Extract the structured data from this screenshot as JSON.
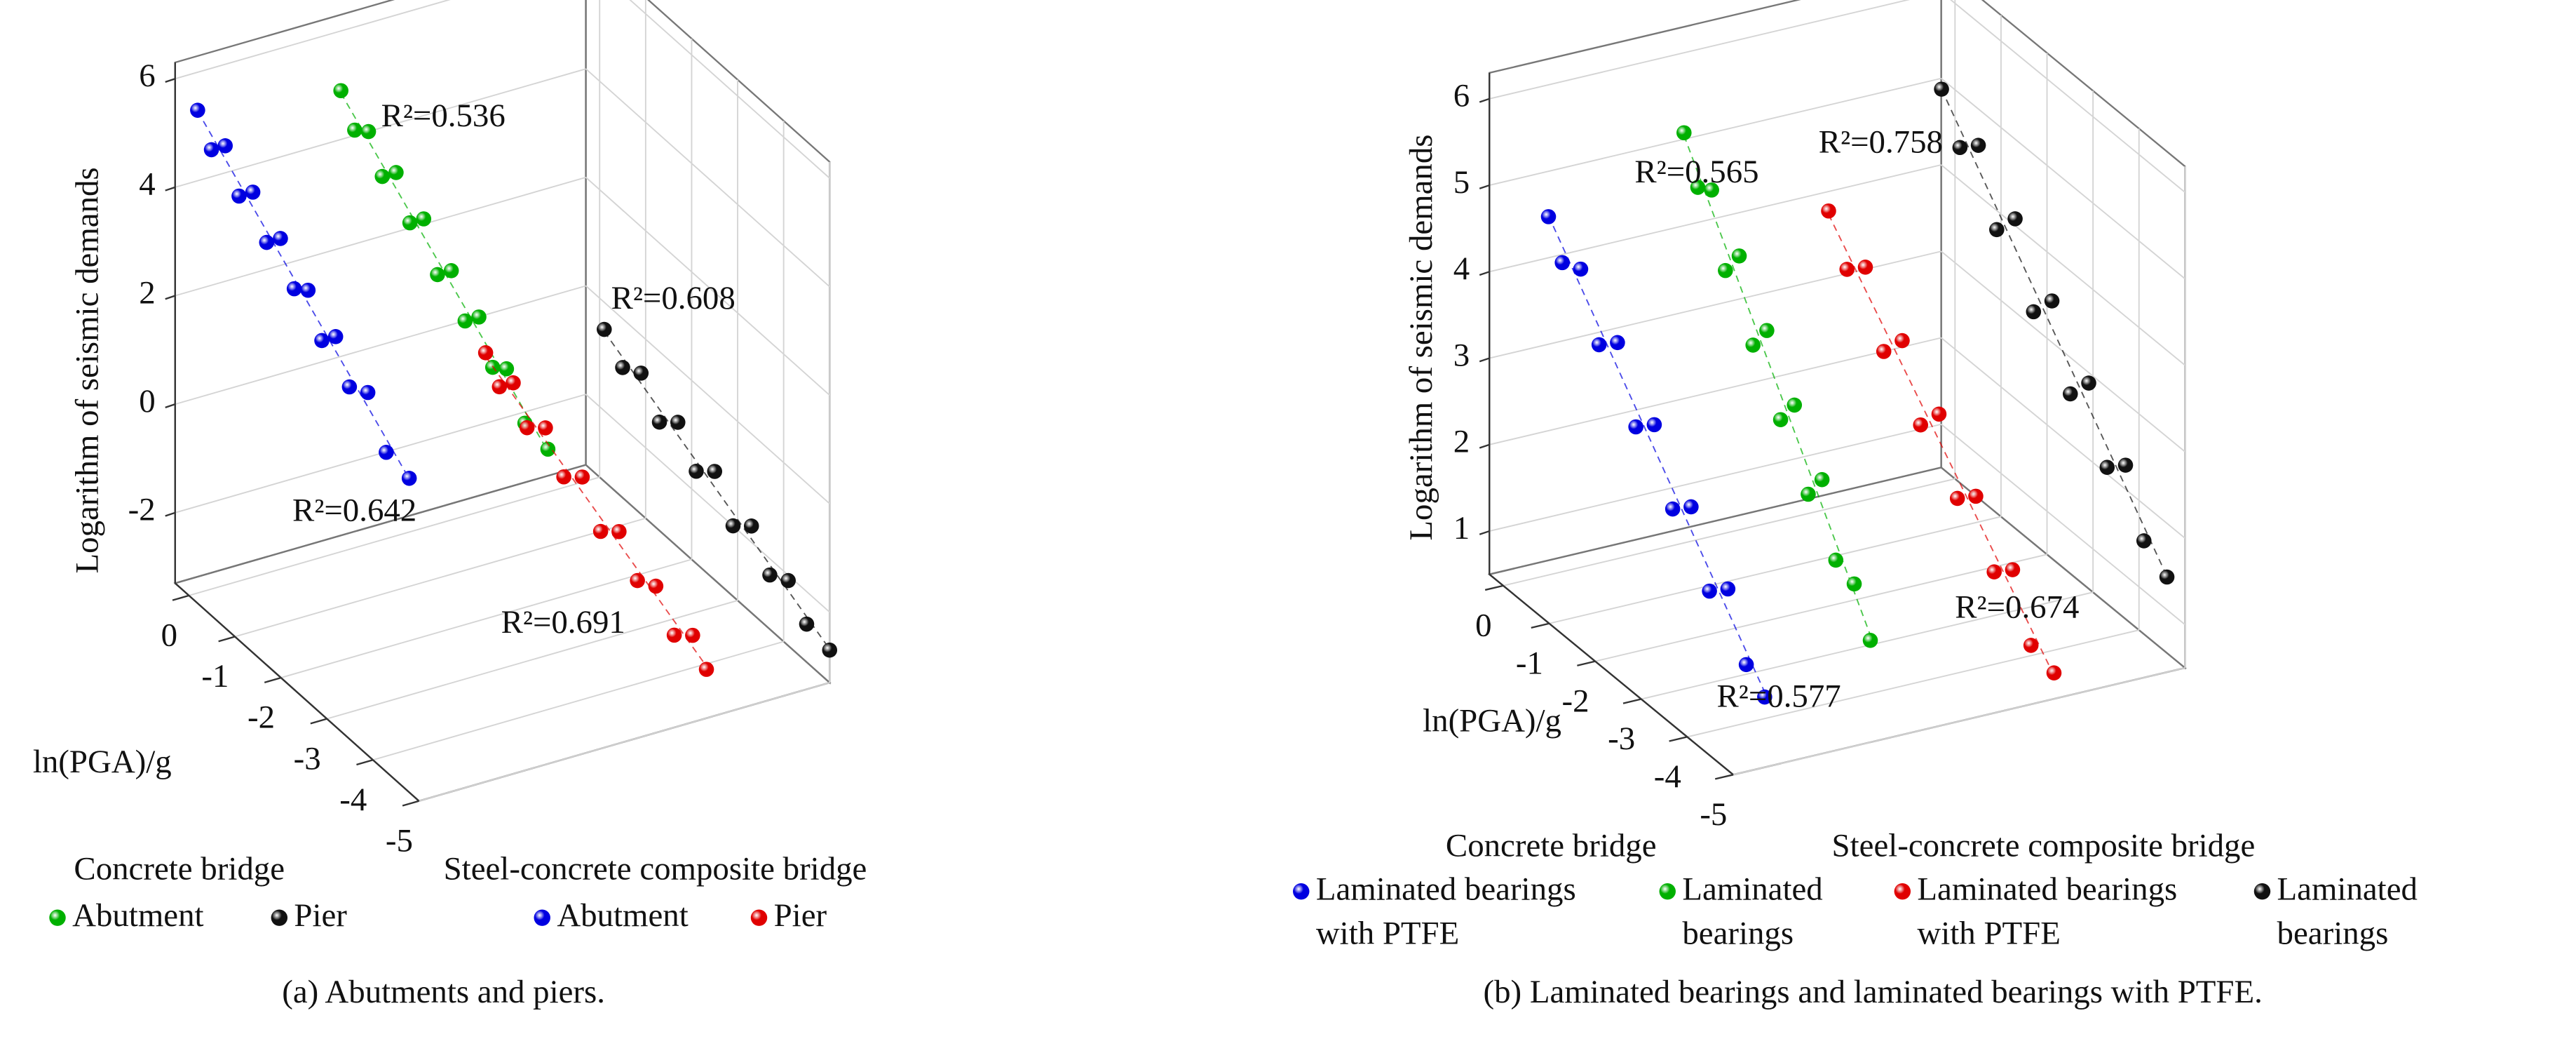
{
  "chart_data": [
    {
      "type": "scatter3d",
      "caption": "(a) Abutments and piers.",
      "zlabel": "Logarithm of seismic demands",
      "xlabel": "ln(PGA)/g",
      "xlim": [
        0.3,
        -5
      ],
      "xticks": [
        0,
        -1,
        -2,
        -3,
        -4,
        -5
      ],
      "zlim": [
        -3.3,
        6.3
      ],
      "zticks": [
        -2,
        0,
        2,
        4,
        6
      ],
      "groups": [
        {
          "title": "Concrete bridge",
          "series": [
            {
              "name": "Abutment",
              "color": "#00b000",
              "annotation": "R²=0.536",
              "x": [
                0,
                -0.3,
                -0.6,
                -0.9,
                -1.2,
                -1.5,
                -1.8,
                -2.1,
                -2.4,
                -2.7,
                -3.0,
                -3.3,
                -3.6,
                -4.0,
                -4.5
              ],
              "values": [
                5.2,
                4.7,
                4.9,
                4.3,
                4.6,
                3.9,
                4.2,
                3.4,
                3.7,
                3.0,
                3.3,
                2.6,
                2.8,
                2.1,
                2.0
              ]
            },
            {
              "name": "Pier",
              "color": "#111111",
              "annotation": "R²=0.608",
              "x": [
                -0.1,
                -0.5,
                -0.9,
                -1.3,
                -1.7,
                -2.1,
                -2.5,
                -2.9,
                -3.3,
                -3.7,
                -4.1,
                -4.5,
                -5.0
              ],
              "values": [
                -0.5,
                -0.9,
                -0.7,
                -1.3,
                -1.0,
                -1.6,
                -1.3,
                -2.0,
                -1.7,
                -2.3,
                -2.1,
                -2.6,
                -2.7
              ]
            }
          ]
        },
        {
          "title": "Steel-concrete composite bridge",
          "series": [
            {
              "name": "Abutment",
              "color": "#0000e0",
              "annotation": "R²=0.642",
              "x": [
                -0.1,
                -0.4,
                -0.7,
                -1.0,
                -1.3,
                -1.6,
                -1.9,
                -2.2,
                -2.5,
                -2.8,
                -3.1,
                -3.4,
                -3.8,
                -4.2,
                -4.7
              ],
              "values": [
                5.7,
                5.2,
                5.5,
                4.8,
                5.1,
                4.4,
                4.7,
                4.0,
                4.2,
                3.5,
                3.8,
                3.1,
                3.3,
                2.5,
                2.4
              ]
            },
            {
              "name": "Pier",
              "color": "#e00000",
              "annotation": "R²=0.691",
              "x": [
                -0.2,
                -0.5,
                -0.8,
                -1.1,
                -1.5,
                -1.9,
                -2.3,
                -2.7,
                -3.1,
                -3.5,
                -3.9,
                -4.3,
                -4.7,
                -5.0
              ],
              "values": [
                -0.2,
                -0.6,
                -0.3,
                -0.9,
                -0.6,
                -1.2,
                -0.9,
                -1.6,
                -1.3,
                -1.9,
                -1.7,
                -2.3,
                -2.0,
                -2.4
              ]
            }
          ]
        }
      ]
    },
    {
      "type": "scatter3d",
      "caption": "(b) Laminated bearings and laminated bearings with PTFE.",
      "zlabel": "Logarithm of seismic demands",
      "xlabel": "ln(PGA)/g",
      "xlim": [
        0.3,
        -5
      ],
      "xticks": [
        0,
        -1,
        -2,
        -3,
        -4,
        -5
      ],
      "zlim": [
        0.5,
        6.3
      ],
      "zticks": [
        1,
        2,
        3,
        4,
        5,
        6
      ],
      "groups": [
        {
          "title": "Concrete bridge",
          "series": [
            {
              "name": "Laminated bearings with PTFE",
              "color": "#0000e0",
              "annotation": "R²=0.577",
              "x": [
                -0.1,
                -0.4,
                -0.8,
                -1.2,
                -1.6,
                -2.0,
                -2.4,
                -2.8,
                -3.2,
                -3.6,
                -4.0,
                -4.4,
                -4.8
              ],
              "values": [
                4.7,
                4.3,
                4.4,
                3.7,
                3.9,
                3.1,
                3.3,
                2.5,
                2.7,
                1.9,
                2.1,
                1.4,
                1.2
              ]
            },
            {
              "name": "Laminated bearings",
              "color": "#00b000",
              "annotation": "R²=0.565",
              "x": [
                -0.1,
                -0.4,
                -0.7,
                -1.0,
                -1.3,
                -1.6,
                -1.9,
                -2.2,
                -2.5,
                -2.8,
                -3.1,
                -3.4,
                -3.8,
                -4.15
              ],
              "values": [
                5.3,
                4.8,
                4.9,
                4.1,
                4.4,
                3.5,
                3.8,
                2.9,
                3.2,
                2.3,
                2.6,
                1.8,
                1.7,
                1.2
              ]
            }
          ]
        },
        {
          "title": "Steel-concrete composite bridge",
          "series": [
            {
              "name": "Laminated bearings with PTFE",
              "color": "#e00000",
              "annotation": "R²=0.674",
              "x": [
                -0.1,
                -0.5,
                -0.9,
                -1.3,
                -1.7,
                -2.1,
                -2.5,
                -2.9,
                -3.3,
                -3.7,
                -4.1,
                -4.5,
                -5.0
              ],
              "values": [
                4.0,
                3.5,
                3.7,
                2.9,
                3.2,
                2.4,
                2.7,
                1.9,
                2.1,
                1.4,
                1.6,
                0.9,
                0.8
              ]
            },
            {
              "name": "Laminated bearings",
              "color": "#111111",
              "annotation": "R²=0.758",
              "x": [
                -0.1,
                -0.5,
                -0.9,
                -1.3,
                -1.7,
                -2.1,
                -2.5,
                -2.9,
                -3.3,
                -3.7,
                -4.1,
                -4.5,
                -5.0
              ],
              "values": [
                5.1,
                4.6,
                4.8,
                4.0,
                4.3,
                3.4,
                3.7,
                2.8,
                3.1,
                2.3,
                2.5,
                1.8,
                1.6
              ]
            }
          ]
        }
      ]
    }
  ]
}
